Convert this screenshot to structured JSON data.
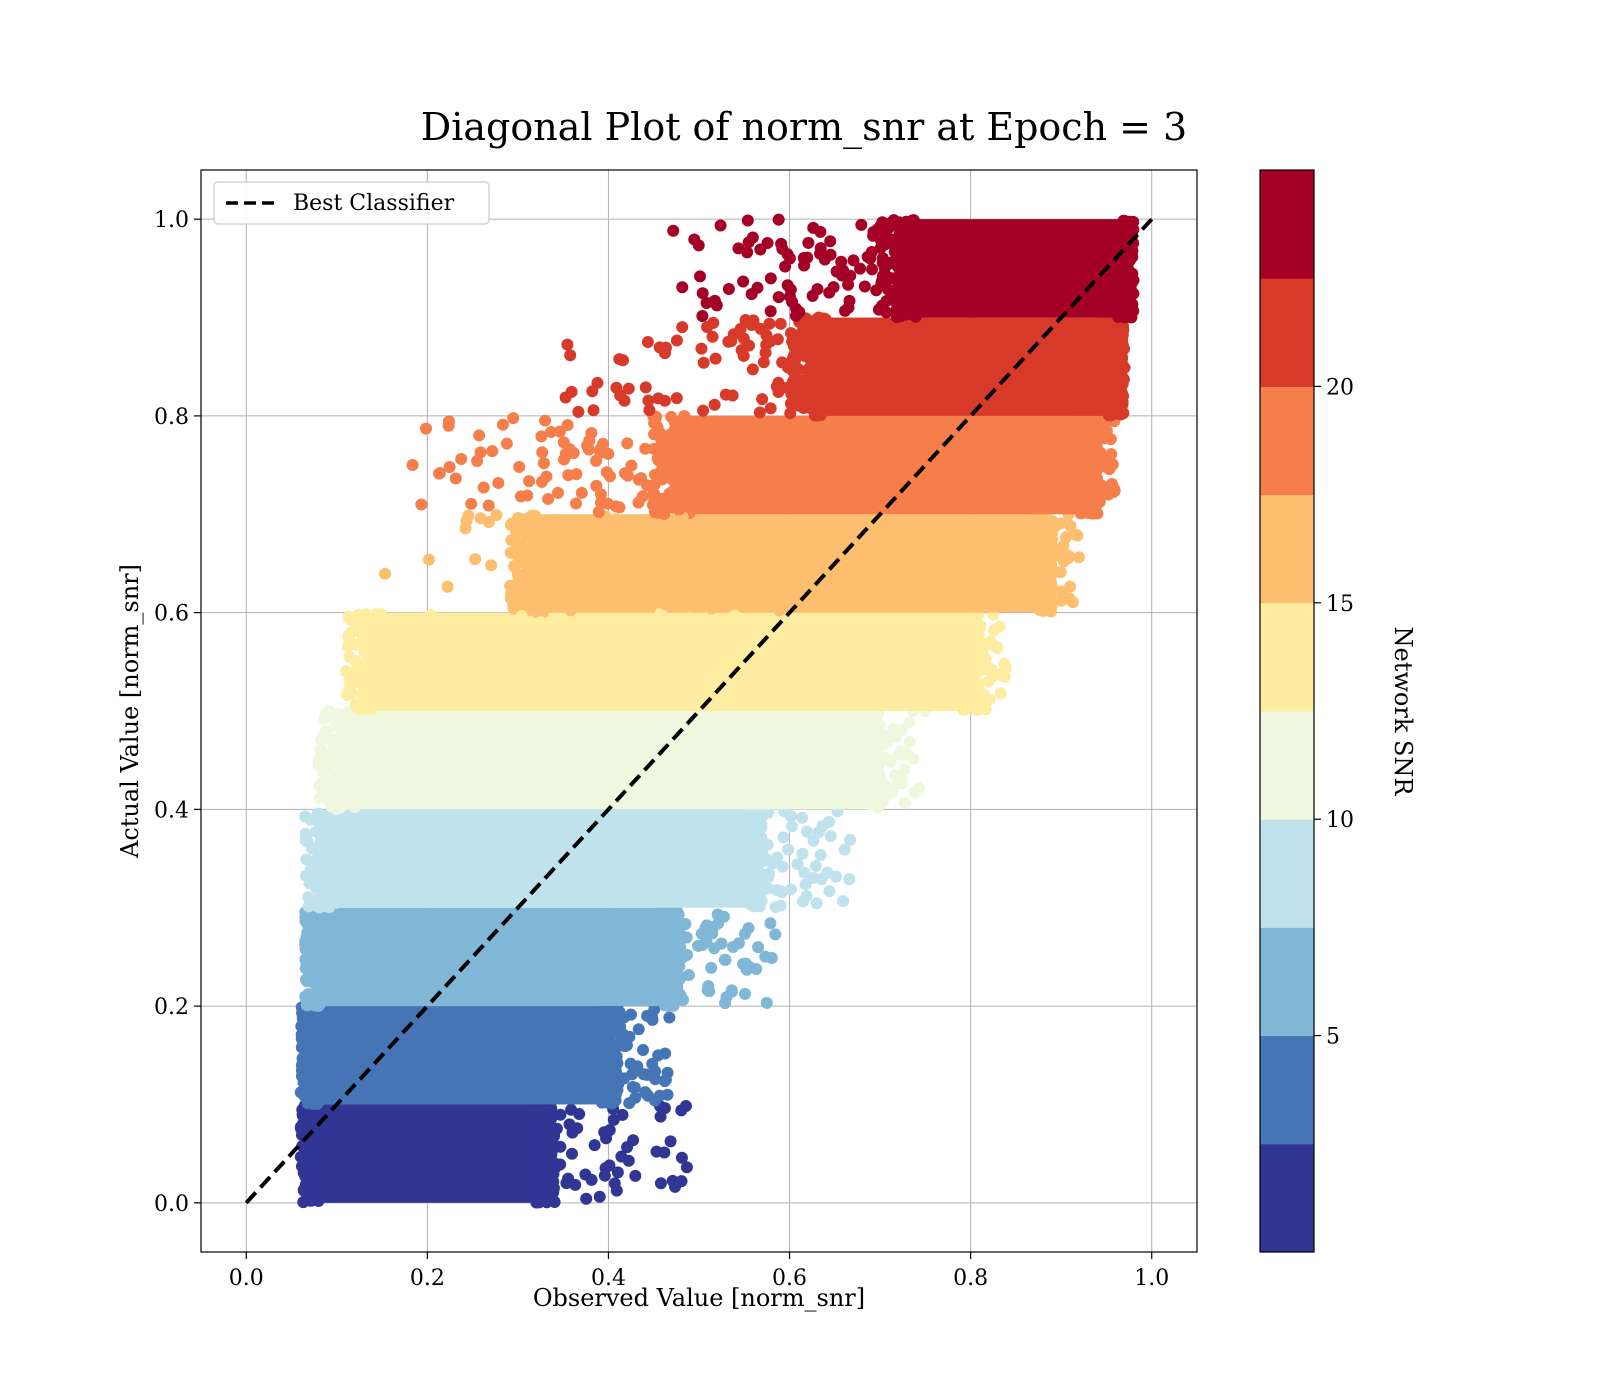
{
  "chart_data": {
    "type": "scatter",
    "title": "Diagonal Plot of norm_snr at Epoch = 3",
    "xlabel": "Observed Value [norm_snr]",
    "ylabel": "Actual Value [norm_snr]",
    "xlim": [
      -0.05,
      1.05
    ],
    "ylim": [
      -0.05,
      1.05
    ],
    "xticks": [
      0.0,
      0.2,
      0.4,
      0.6,
      0.8,
      1.0
    ],
    "yticks": [
      0.0,
      0.2,
      0.4,
      0.6,
      0.8,
      1.0
    ],
    "xtick_labels": [
      "0.0",
      "0.2",
      "0.4",
      "0.6",
      "0.8",
      "1.0"
    ],
    "ytick_labels": [
      "0.0",
      "0.2",
      "0.4",
      "0.6",
      "0.8",
      "1.0"
    ],
    "grid": true,
    "legend": {
      "placement": "top-left",
      "entries": [
        {
          "label": "Best Classifier",
          "style": "dashed-line",
          "color": "#000000"
        }
      ]
    },
    "reference_line": {
      "name": "Best Classifier",
      "x": [
        0.0,
        1.0
      ],
      "y": [
        0.0,
        1.0
      ],
      "style": "dashed",
      "color": "#000000"
    },
    "bands": [
      {
        "y_range": [
          0.0,
          0.1
        ],
        "color": "#313695",
        "x_range": [
          0.07,
          0.33
        ],
        "x_outer": 0.49
      },
      {
        "y_range": [
          0.1,
          0.2
        ],
        "color": "#4575b4",
        "x_range": [
          0.07,
          0.4
        ],
        "x_outer": 0.47
      },
      {
        "y_range": [
          0.2,
          0.3
        ],
        "color": "#80b6d6",
        "x_range": [
          0.075,
          0.47
        ],
        "x_outer": 0.6
      },
      {
        "y_range": [
          0.3,
          0.4
        ],
        "color": "#bfe2ec",
        "x_range": [
          0.09,
          0.56
        ],
        "x_outer": 0.67
      },
      {
        "y_range": [
          0.4,
          0.5
        ],
        "color": "#eff8de",
        "x_range": [
          0.11,
          0.69
        ],
        "x_outer": 0.75
      },
      {
        "y_range": [
          0.5,
          0.6
        ],
        "color": "#feeda1",
        "x_range": [
          0.14,
          0.8
        ],
        "x_outer": 0.84
      },
      {
        "y_range": [
          0.6,
          0.7
        ],
        "color": "#fdbe6f",
        "x_range": [
          0.32,
          0.88
        ],
        "x_outer": 0.92
      },
      {
        "y_range": [
          0.7,
          0.8
        ],
        "color": "#f57e4a",
        "x_range": [
          0.48,
          0.93
        ],
        "x_outer": 0.96
      },
      {
        "y_range": [
          0.8,
          0.9
        ],
        "color": "#d83a2a",
        "x_range": [
          0.63,
          0.96
        ],
        "x_outer": 0.97
      },
      {
        "y_range": [
          0.9,
          1.0
        ],
        "color": "#a50026",
        "x_range": [
          0.73,
          0.97
        ],
        "x_outer": 0.97
      }
    ],
    "colorbar": {
      "label": "Network SNR",
      "range": [
        0,
        25
      ],
      "ticks": [
        5,
        10,
        15,
        20
      ],
      "tick_labels": [
        "5",
        "10",
        "15",
        "20"
      ],
      "colors": [
        "#313695",
        "#4575b4",
        "#80b6d6",
        "#bfe2ec",
        "#eff8de",
        "#feeda1",
        "#fdbe6f",
        "#f57e4a",
        "#d83a2a",
        "#a50026"
      ]
    }
  }
}
